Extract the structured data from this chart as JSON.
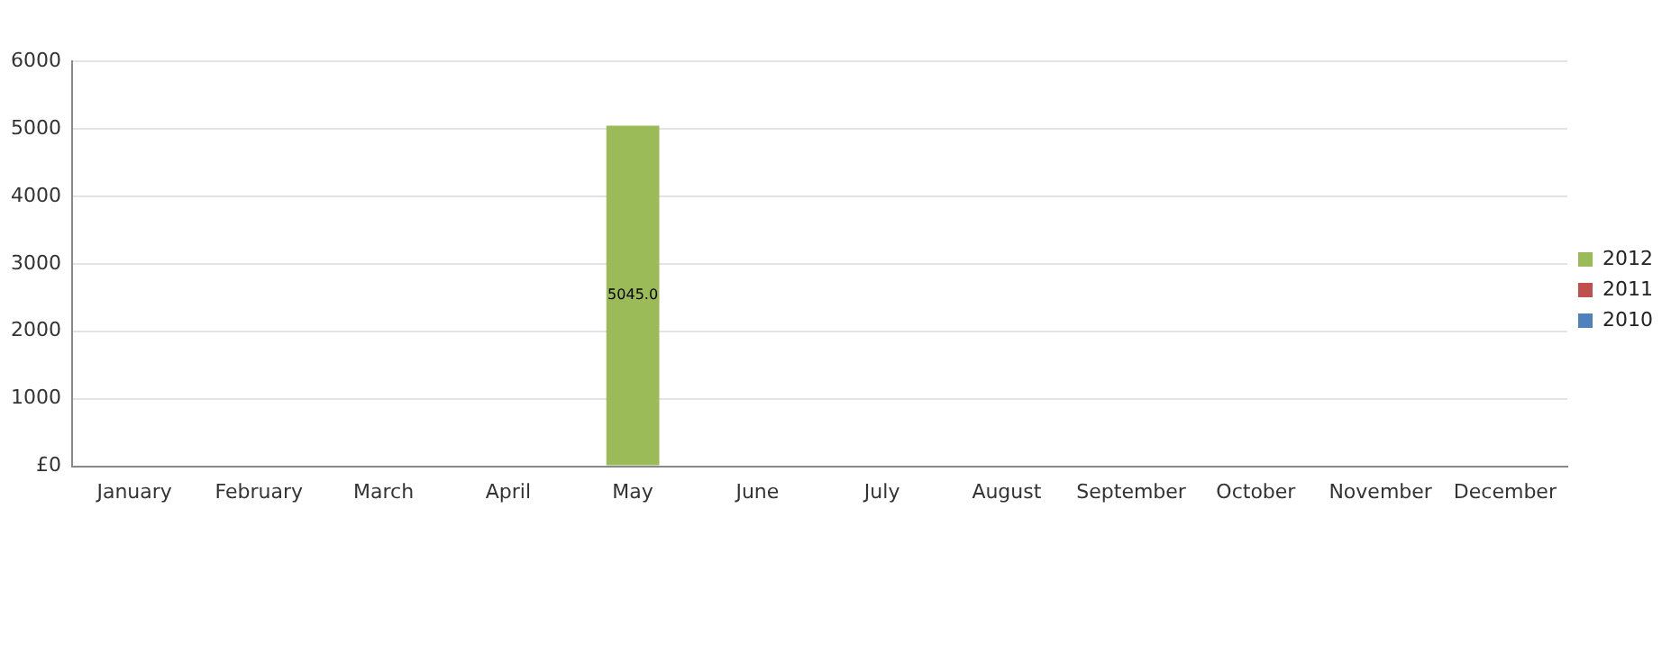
{
  "chart_data": {
    "type": "bar",
    "stacked": true,
    "categories": [
      "January",
      "February",
      "March",
      "April",
      "May",
      "June",
      "July",
      "August",
      "September",
      "October",
      "November",
      "December"
    ],
    "series": [
      {
        "name": "2012",
        "color": "#9bbb59",
        "values": [
          0,
          0,
          0,
          0,
          5045,
          0,
          0,
          0,
          0,
          0,
          0,
          0
        ],
        "value_labels": [
          null,
          null,
          null,
          null,
          "5045.0",
          null,
          null,
          null,
          null,
          null,
          null,
          null
        ]
      },
      {
        "name": "2011",
        "color": "#c0504d",
        "values": [
          0,
          0,
          0,
          0,
          0,
          0,
          0,
          0,
          0,
          0,
          0,
          0
        ]
      },
      {
        "name": "2010",
        "color": "#4f81bd",
        "values": [
          0,
          0,
          0,
          0,
          0,
          0,
          0,
          0,
          0,
          0,
          0,
          0
        ]
      }
    ],
    "ylim": [
      0,
      6000
    ],
    "yticks": [
      {
        "value": 0,
        "label": "£0"
      },
      1000,
      2000,
      3000,
      4000,
      5000,
      6000
    ],
    "grid": "y",
    "legend": "right"
  }
}
